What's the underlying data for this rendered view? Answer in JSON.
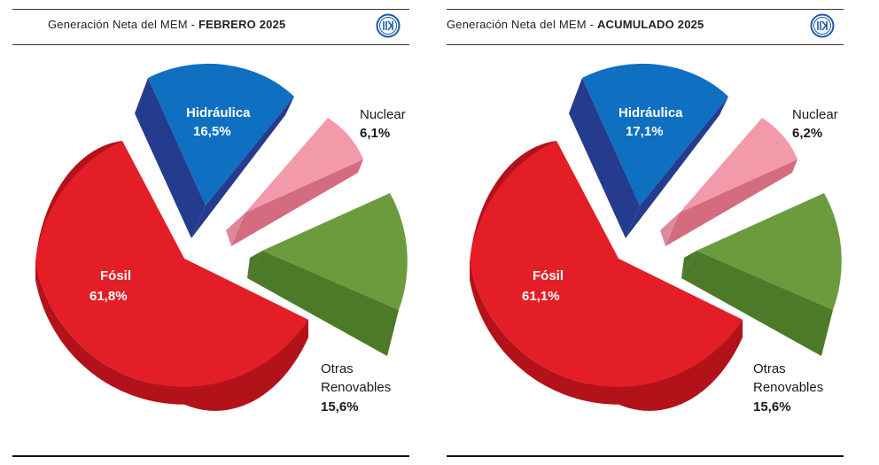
{
  "colors": {
    "fosil": "#e41e26",
    "fosil_side": "#b3121b",
    "hidraulica": "#0f6fc0",
    "hidraulica_side": "#253b8e",
    "nuclear": "#f39aaa",
    "nuclear_side": "#d46b7f",
    "otras": "#6c9b3e",
    "otras_side": "#4c7a29",
    "logo": "#1c5aa6"
  },
  "chart_data": [
    {
      "type": "pie",
      "title_prefix": "Generación Neta del MEM - ",
      "title_bold": "FEBRERO 2025",
      "slices": [
        {
          "label": "Fósil",
          "value": 61.8,
          "value_label": "61,8%"
        },
        {
          "label": "Hidráulica",
          "value": 16.5,
          "value_label": "16,5%"
        },
        {
          "label": "Nuclear",
          "value": 6.1,
          "value_label": "6,1%"
        },
        {
          "label_line1": "Otras",
          "label_line2": "Renovables",
          "value": 15.6,
          "value_label": "15,6%"
        }
      ]
    },
    {
      "type": "pie",
      "title_prefix": "Generación Neta del MEM - ",
      "title_bold": "ACUMULADO 2025",
      "slices": [
        {
          "label": "Fósil",
          "value": 61.1,
          "value_label": "61,1%"
        },
        {
          "label": "Hidráulica",
          "value": 17.1,
          "value_label": "17,1%"
        },
        {
          "label": "Nuclear",
          "value": 6.2,
          "value_label": "6,2%"
        },
        {
          "label_line1": "Otras",
          "label_line2": "Renovables",
          "value": 15.6,
          "value_label": "15,6%"
        }
      ]
    }
  ]
}
